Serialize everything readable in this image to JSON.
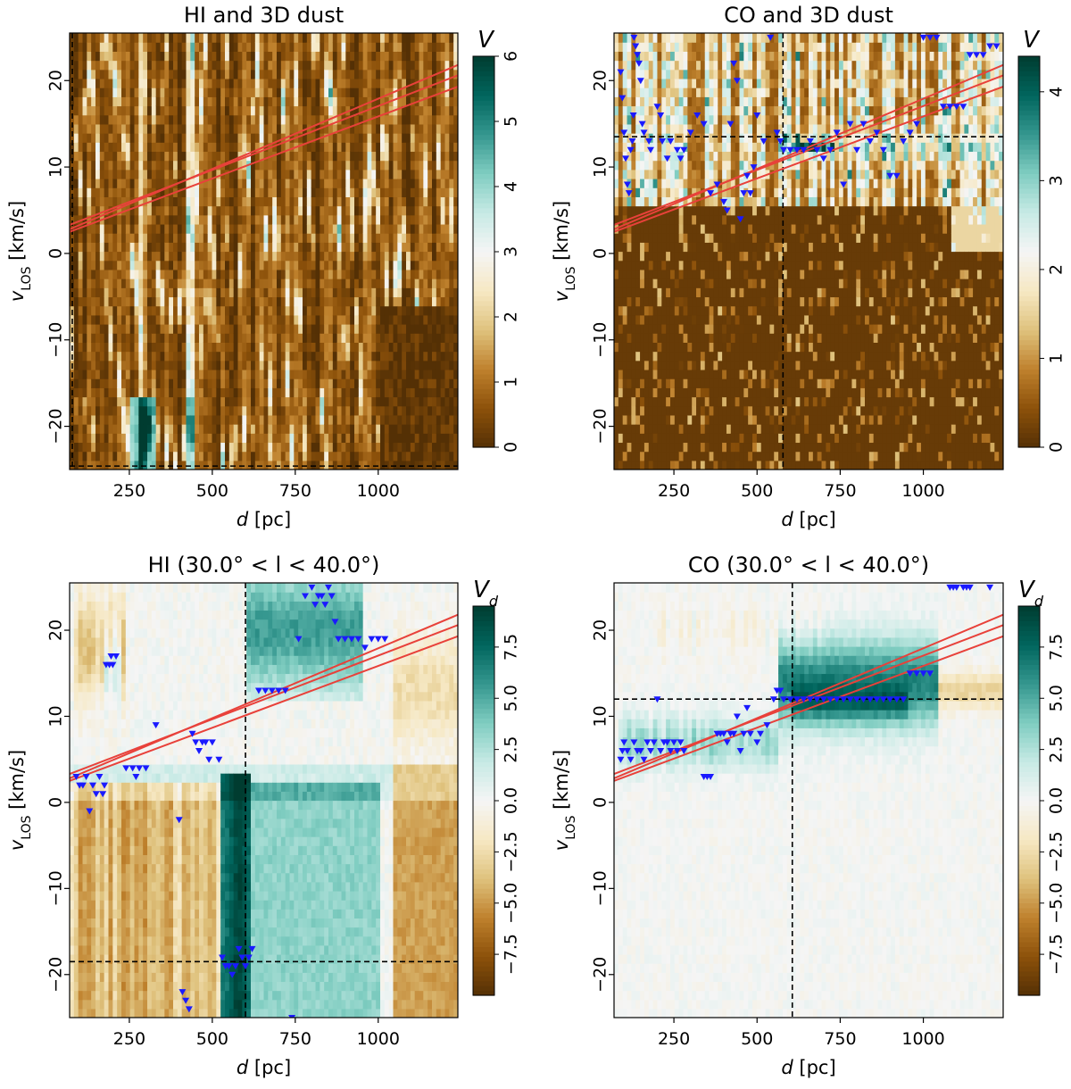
{
  "colors": {
    "cmap": [
      "#543005",
      "#8c510a",
      "#bf812d",
      "#dfc27d",
      "#f6e8c3",
      "#f5f5f5",
      "#c7eae5",
      "#80cdc1",
      "#35978f",
      "#01665e",
      "#003c30"
    ],
    "fit_line": "#e8413a",
    "marker": "#1a1aff",
    "dash": "#000000"
  },
  "chart_data": [
    {
      "type": "heatmap",
      "title": "HI and 3D dust",
      "xlabel_italic": "d",
      "xlabel_rest": " [pc]",
      "ylabel_main": "v",
      "ylabel_sub": "LOS",
      "ylabel_rest": " [km/s]",
      "xlim": [
        70,
        1240
      ],
      "ylim": [
        -25,
        25.5
      ],
      "xticks": [
        250,
        500,
        750,
        1000
      ],
      "yticks": [
        -20,
        -10,
        0,
        10,
        20
      ],
      "colorbar": {
        "label_main": "V",
        "label_sub": "",
        "range": [
          0,
          6
        ],
        "ticks": [
          0,
          1,
          2,
          3,
          4,
          5,
          6
        ],
        "cmap_range": [
          0,
          6
        ],
        "diverging": false
      },
      "seed": 11,
      "field": "hi_dust",
      "fit_lines": [
        {
          "x": [
            70,
            1240
          ],
          "y": [
            2.8,
            21.8
          ]
        },
        {
          "x": [
            70,
            1240
          ],
          "y": [
            3.3,
            20.6
          ]
        },
        {
          "x": [
            70,
            1240
          ],
          "y": [
            2.5,
            19.3
          ]
        }
      ],
      "crosshair": {
        "x": 78,
        "y": -24.6
      },
      "markers": []
    },
    {
      "type": "heatmap",
      "title": "CO and 3D dust",
      "xlabel_italic": "d",
      "xlabel_rest": " [pc]",
      "ylabel_main": "v",
      "ylabel_sub": "LOS",
      "ylabel_rest": " [km/s]",
      "xlim": [
        70,
        1240
      ],
      "ylim": [
        -25,
        25.5
      ],
      "xticks": [
        250,
        500,
        750,
        1000
      ],
      "yticks": [
        -20,
        -10,
        0,
        10,
        20
      ],
      "colorbar": {
        "label_main": "V",
        "label_sub": "",
        "range": [
          0,
          4.4
        ],
        "ticks": [
          0,
          1,
          2,
          3,
          4
        ],
        "cmap_range": [
          0,
          4.4
        ],
        "diverging": false
      },
      "seed": 23,
      "field": "co_dust",
      "fit_lines": [
        {
          "x": [
            70,
            1240
          ],
          "y": [
            2.8,
            21.8
          ]
        },
        {
          "x": [
            70,
            1240
          ],
          "y": [
            3.3,
            20.6
          ]
        },
        {
          "x": [
            70,
            1240
          ],
          "y": [
            2.5,
            19.3
          ]
        }
      ],
      "crosshair": {
        "x": 578,
        "y": 13.5
      },
      "markers": [
        [
          90,
          21
        ],
        [
          95,
          18
        ],
        [
          100,
          14
        ],
        [
          105,
          11
        ],
        [
          110,
          8
        ],
        [
          115,
          7
        ],
        [
          120,
          12
        ],
        [
          125,
          13
        ],
        [
          128,
          16
        ],
        [
          130,
          25
        ],
        [
          135,
          24
        ],
        [
          140,
          23
        ],
        [
          145,
          22
        ],
        [
          150,
          20
        ],
        [
          155,
          15
        ],
        [
          160,
          14
        ],
        [
          175,
          13
        ],
        [
          180,
          12
        ],
        [
          200,
          17
        ],
        [
          210,
          16
        ],
        [
          215,
          13
        ],
        [
          230,
          11
        ],
        [
          240,
          13
        ],
        [
          260,
          12
        ],
        [
          270,
          11
        ],
        [
          280,
          12
        ],
        [
          300,
          14
        ],
        [
          320,
          16
        ],
        [
          340,
          15
        ],
        [
          360,
          7
        ],
        [
          380,
          8
        ],
        [
          400,
          6
        ],
        [
          410,
          5
        ],
        [
          420,
          15
        ],
        [
          430,
          22
        ],
        [
          440,
          20
        ],
        [
          450,
          4
        ],
        [
          460,
          7
        ],
        [
          470,
          9
        ],
        [
          480,
          7
        ],
        [
          490,
          10
        ],
        [
          500,
          16
        ],
        [
          520,
          13
        ],
        [
          540,
          25
        ],
        [
          560,
          14
        ],
        [
          570,
          13
        ],
        [
          580,
          12
        ],
        [
          600,
          12
        ],
        [
          620,
          12
        ],
        [
          640,
          12
        ],
        [
          660,
          13
        ],
        [
          680,
          12
        ],
        [
          700,
          11
        ],
        [
          720,
          12
        ],
        [
          740,
          14
        ],
        [
          760,
          8
        ],
        [
          780,
          15
        ],
        [
          800,
          12
        ],
        [
          820,
          15
        ],
        [
          840,
          13
        ],
        [
          860,
          14
        ],
        [
          880,
          12
        ],
        [
          900,
          9
        ],
        [
          920,
          9
        ],
        [
          940,
          13
        ],
        [
          960,
          14
        ],
        [
          980,
          15
        ],
        [
          1000,
          25
        ],
        [
          1020,
          25
        ],
        [
          1040,
          25
        ],
        [
          1060,
          17
        ],
        [
          1080,
          17
        ],
        [
          1100,
          17
        ],
        [
          1120,
          17
        ],
        [
          1140,
          23
        ],
        [
          1160,
          23
        ],
        [
          1180,
          23
        ],
        [
          1200,
          24
        ],
        [
          1220,
          24
        ]
      ]
    },
    {
      "type": "heatmap",
      "title": "HI (30.0° < l < 40.0°)",
      "xlabel_italic": "d",
      "xlabel_rest": " [pc]",
      "ylabel_main": "v",
      "ylabel_sub": "LOS",
      "ylabel_rest": " [km/s]",
      "xlim": [
        70,
        1240
      ],
      "ylim": [
        -25,
        25.5
      ],
      "xticks": [
        250,
        500,
        750,
        1000
      ],
      "yticks": [
        -20,
        -10,
        0,
        10,
        20
      ],
      "colorbar": {
        "label_main": "V",
        "label_sub": "d",
        "range": [
          -9.5,
          9.5
        ],
        "ticks": [
          -7.5,
          -5.0,
          -2.5,
          0.0,
          2.5,
          5.0,
          7.5
        ],
        "tick_labels": [
          "−7.5",
          "−5.0",
          "−2.5",
          "0.0",
          "2.5",
          "5.0",
          "7.5"
        ],
        "cmap_range": [
          -9.5,
          9.5
        ],
        "diverging": true
      },
      "seed": 37,
      "field": "hi_l",
      "fit_lines": [
        {
          "x": [
            70,
            1240
          ],
          "y": [
            2.8,
            21.8
          ]
        },
        {
          "x": [
            70,
            1240
          ],
          "y": [
            3.3,
            20.6
          ]
        },
        {
          "x": [
            70,
            1240
          ],
          "y": [
            2.5,
            19.3
          ]
        }
      ],
      "crosshair": {
        "x": 600,
        "y": -18.5
      },
      "markers": [
        [
          90,
          3
        ],
        [
          100,
          2
        ],
        [
          110,
          2
        ],
        [
          120,
          3
        ],
        [
          130,
          -1
        ],
        [
          140,
          2
        ],
        [
          150,
          1
        ],
        [
          160,
          3
        ],
        [
          170,
          1
        ],
        [
          175,
          2
        ],
        [
          180,
          16
        ],
        [
          190,
          16
        ],
        [
          195,
          17
        ],
        [
          200,
          16
        ],
        [
          210,
          17
        ],
        [
          240,
          4
        ],
        [
          260,
          4
        ],
        [
          270,
          3
        ],
        [
          280,
          4
        ],
        [
          300,
          4
        ],
        [
          330,
          9
        ],
        [
          400,
          -2
        ],
        [
          410,
          -22
        ],
        [
          420,
          -23
        ],
        [
          430,
          -24
        ],
        [
          440,
          8
        ],
        [
          450,
          7
        ],
        [
          460,
          6
        ],
        [
          470,
          7
        ],
        [
          480,
          7
        ],
        [
          490,
          5
        ],
        [
          500,
          7
        ],
        [
          520,
          5
        ],
        [
          530,
          -18
        ],
        [
          540,
          -19
        ],
        [
          550,
          -19
        ],
        [
          560,
          -20
        ],
        [
          570,
          -19
        ],
        [
          580,
          -17
        ],
        [
          590,
          -18
        ],
        [
          600,
          -19
        ],
        [
          610,
          -18
        ],
        [
          620,
          -17
        ],
        [
          640,
          13
        ],
        [
          660,
          13
        ],
        [
          680,
          13
        ],
        [
          700,
          13
        ],
        [
          720,
          13
        ],
        [
          740,
          -25
        ],
        [
          760,
          19
        ],
        [
          780,
          24
        ],
        [
          800,
          25
        ],
        [
          810,
          23
        ],
        [
          820,
          24
        ],
        [
          830,
          24
        ],
        [
          840,
          23
        ],
        [
          850,
          25
        ],
        [
          860,
          24
        ],
        [
          870,
          21
        ],
        [
          880,
          19
        ],
        [
          900,
          19
        ],
        [
          920,
          19
        ],
        [
          940,
          19
        ],
        [
          960,
          18
        ],
        [
          980,
          19
        ],
        [
          1000,
          19
        ],
        [
          1020,
          19
        ]
      ]
    },
    {
      "type": "heatmap",
      "title": "CO (30.0° < l < 40.0°)",
      "xlabel_italic": "d",
      "xlabel_rest": " [pc]",
      "ylabel_main": "v",
      "ylabel_sub": "LOS",
      "ylabel_rest": " [km/s]",
      "xlim": [
        70,
        1240
      ],
      "ylim": [
        -25,
        25.5
      ],
      "xticks": [
        250,
        500,
        750,
        1000
      ],
      "yticks": [
        -20,
        -10,
        0,
        10,
        20
      ],
      "colorbar": {
        "label_main": "V",
        "label_sub": "d",
        "range": [
          -9.5,
          9.5
        ],
        "ticks": [
          -7.5,
          -5.0,
          -2.5,
          0.0,
          2.5,
          5.0,
          7.5
        ],
        "tick_labels": [
          "−7.5",
          "−5.0",
          "−2.5",
          "0.0",
          "2.5",
          "5.0",
          "7.5"
        ],
        "cmap_range": [
          -9.5,
          9.5
        ],
        "diverging": true
      },
      "seed": 51,
      "field": "co_l",
      "fit_lines": [
        {
          "x": [
            70,
            1240
          ],
          "y": [
            2.8,
            21.8
          ]
        },
        {
          "x": [
            70,
            1240
          ],
          "y": [
            3.3,
            20.6
          ]
        },
        {
          "x": [
            70,
            1240
          ],
          "y": [
            2.5,
            19.3
          ]
        }
      ],
      "crosshair": {
        "x": 606,
        "y": 12
      },
      "markers": [
        [
          90,
          5
        ],
        [
          95,
          6
        ],
        [
          100,
          7
        ],
        [
          110,
          6
        ],
        [
          120,
          5
        ],
        [
          130,
          7
        ],
        [
          140,
          6
        ],
        [
          150,
          6
        ],
        [
          160,
          5
        ],
        [
          170,
          7
        ],
        [
          180,
          6
        ],
        [
          190,
          7
        ],
        [
          200,
          12
        ],
        [
          210,
          6
        ],
        [
          220,
          7
        ],
        [
          230,
          7
        ],
        [
          240,
          6
        ],
        [
          250,
          7
        ],
        [
          260,
          6
        ],
        [
          270,
          7
        ],
        [
          280,
          6
        ],
        [
          340,
          3
        ],
        [
          350,
          3
        ],
        [
          360,
          3
        ],
        [
          380,
          8
        ],
        [
          390,
          8
        ],
        [
          400,
          8
        ],
        [
          410,
          7
        ],
        [
          420,
          8
        ],
        [
          430,
          8
        ],
        [
          440,
          10
        ],
        [
          450,
          6
        ],
        [
          460,
          8
        ],
        [
          470,
          11
        ],
        [
          480,
          8
        ],
        [
          500,
          7
        ],
        [
          510,
          8
        ],
        [
          530,
          9
        ],
        [
          550,
          12
        ],
        [
          560,
          13
        ],
        [
          570,
          13
        ],
        [
          580,
          12
        ],
        [
          600,
          12
        ],
        [
          620,
          12
        ],
        [
          640,
          12
        ],
        [
          660,
          12
        ],
        [
          680,
          12
        ],
        [
          700,
          12
        ],
        [
          720,
          12
        ],
        [
          740,
          12
        ],
        [
          760,
          12
        ],
        [
          780,
          12
        ],
        [
          800,
          12
        ],
        [
          820,
          12
        ],
        [
          840,
          12
        ],
        [
          860,
          12
        ],
        [
          880,
          12
        ],
        [
          900,
          12
        ],
        [
          920,
          12
        ],
        [
          940,
          12
        ],
        [
          960,
          15
        ],
        [
          980,
          15
        ],
        [
          1000,
          15
        ],
        [
          1020,
          15
        ],
        [
          1080,
          25
        ],
        [
          1090,
          25
        ],
        [
          1100,
          25
        ],
        [
          1120,
          25
        ],
        [
          1130,
          25
        ],
        [
          1140,
          25
        ],
        [
          1200,
          25
        ]
      ]
    }
  ]
}
